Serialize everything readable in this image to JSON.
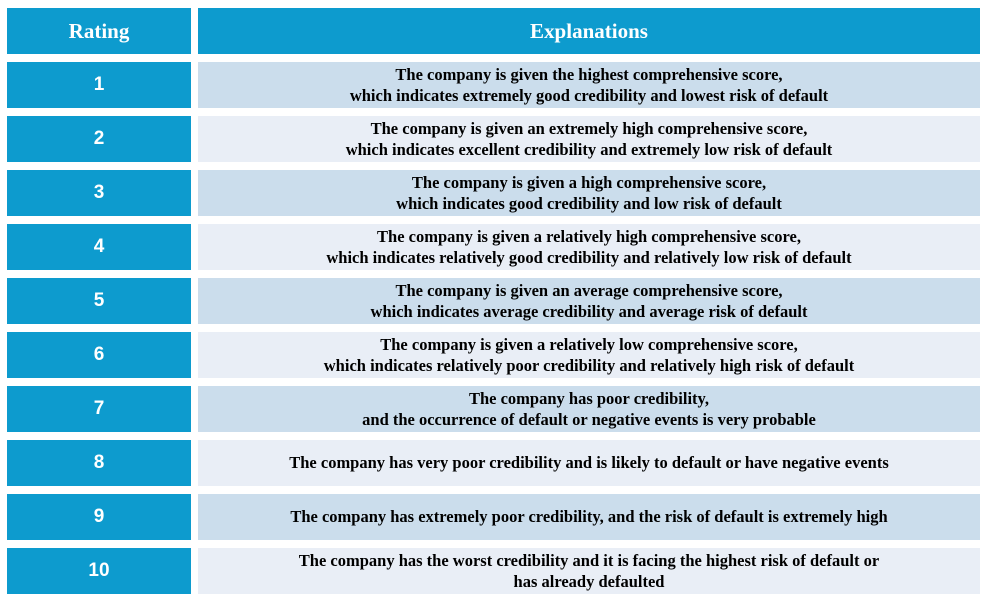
{
  "colors": {
    "accent_blue": "#0d9bce",
    "row_shaded": "#cbddec",
    "row_light": "#e9eef6",
    "gap_white": "#ffffff",
    "header_text": "#ffffff",
    "body_text": "#000000"
  },
  "table": {
    "headers": {
      "rating": "Rating",
      "explanations": "Explanations"
    },
    "rows": [
      {
        "rating": "1",
        "lines": [
          "The company is given the highest comprehensive score,",
          "which indicates extremely good credibility and lowest risk of default"
        ]
      },
      {
        "rating": "2",
        "lines": [
          "The company is given an extremely high comprehensive score,",
          "which indicates excellent credibility and extremely low risk of default"
        ]
      },
      {
        "rating": "3",
        "lines": [
          "The company is given a high comprehensive score,",
          "which indicates good credibility and low risk of default"
        ]
      },
      {
        "rating": "4",
        "lines": [
          "The company is given a relatively high comprehensive score,",
          "which indicates relatively good credibility and relatively low risk of default"
        ]
      },
      {
        "rating": "5",
        "lines": [
          "The company is given an average comprehensive score,",
          "which indicates average credibility and average risk of default"
        ]
      },
      {
        "rating": "6",
        "lines": [
          "The company is given a relatively low comprehensive score,",
          "which indicates relatively poor credibility and relatively high risk of default"
        ]
      },
      {
        "rating": "7",
        "lines": [
          "The company has poor credibility,",
          "and the occurrence of default or negative events is very probable"
        ]
      },
      {
        "rating": "8",
        "lines": [
          "The company has very poor credibility and is likely to default or have negative events"
        ]
      },
      {
        "rating": "9",
        "lines": [
          "The company has extremely poor credibility, and the risk of default is extremely high"
        ]
      },
      {
        "rating": "10",
        "lines": [
          "The company has the worst credibility and it is facing the highest risk of default or",
          "has already defaulted"
        ]
      }
    ]
  },
  "chart_data": {
    "type": "table",
    "columns": [
      "Rating",
      "Explanations"
    ],
    "rows": [
      [
        "1",
        "The company is given the highest comprehensive score, which indicates extremely good credibility and lowest risk of default"
      ],
      [
        "2",
        "The company is given an extremely high comprehensive score, which indicates excellent credibility and extremely low risk of default"
      ],
      [
        "3",
        "The company is given a high comprehensive score, which indicates good credibility and low risk of default"
      ],
      [
        "4",
        "The company is given a relatively high comprehensive score, which indicates relatively good credibility and relatively low risk of default"
      ],
      [
        "5",
        "The company is given an average comprehensive score, which indicates average credibility and average risk of default"
      ],
      [
        "6",
        "The company is given a relatively low comprehensive score, which indicates relatively poor credibility and relatively high risk of default"
      ],
      [
        "7",
        "The company has poor credibility, and the occurrence of default or negative events is very probable"
      ],
      [
        "8",
        "The company has very poor credibility and is likely to default or have negative events"
      ],
      [
        "9",
        "The company has extremely poor credibility, and the risk of default is extremely high"
      ],
      [
        "10",
        "The company has the worst credibility and it is facing the highest risk of default or has already defaulted"
      ]
    ]
  }
}
